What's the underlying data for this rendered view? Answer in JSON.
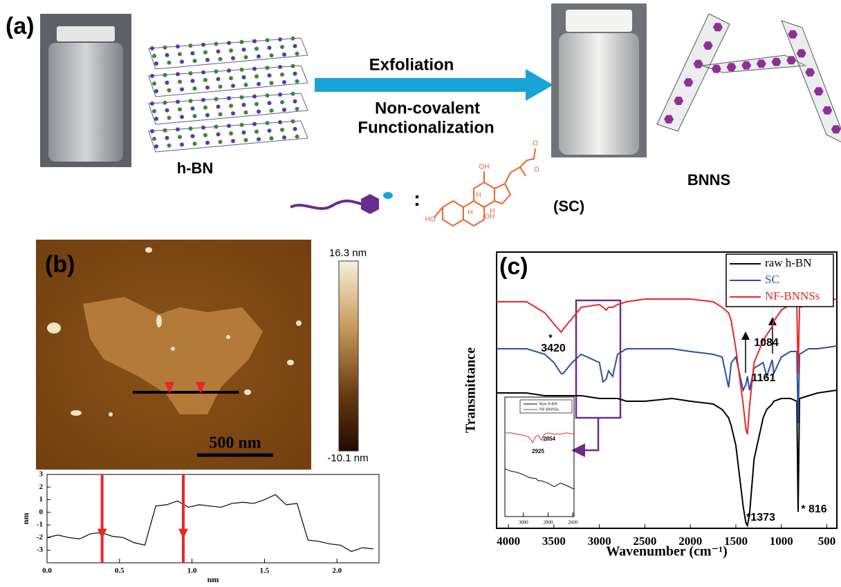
{
  "panel_a": {
    "label": "(a)",
    "hbn": "h-BN",
    "exfoliation": "Exfoliation",
    "functionalization_1": "Non-covalent",
    "functionalization_2": "Functionalization",
    "bnns": "BNNS",
    "colon": ":",
    "sc": "(SC)",
    "molecule_labels": [
      "OH",
      "HO",
      "OH",
      "H",
      "H",
      "H",
      "O",
      "O"
    ]
  },
  "panel_b": {
    "label": "(b)",
    "scale_bar": "500 nm",
    "colorbar_max": "16.3 nm",
    "colorbar_min": "-10.1 nm"
  },
  "panel_c": {
    "label": "(c)"
  },
  "chart_data": [
    {
      "type": "line",
      "xlabel": "nm",
      "ylabel": "nm",
      "x": [
        0,
        0.075,
        0.15,
        0.225,
        0.3,
        0.375,
        0.45,
        0.525,
        0.6,
        0.675,
        0.75,
        0.825,
        0.9,
        0.975,
        1.05,
        1.125,
        1.2,
        1.275,
        1.35,
        1.425,
        1.5,
        1.575,
        1.65,
        1.725,
        1.8,
        1.875,
        1.95,
        2.025,
        2.1,
        2.175,
        2.25
      ],
      "series": [
        {
          "color": "#000000",
          "values": [
            -2.0,
            -1.8,
            -2.0,
            -2.1,
            -1.7,
            -1.6,
            -1.9,
            -2.0,
            -2.4,
            -2.6,
            0.5,
            0.6,
            0.9,
            0.4,
            0.6,
            0.5,
            0.4,
            0.7,
            0.8,
            0.7,
            1.0,
            1.4,
            0.6,
            0.7,
            -2.2,
            -2.3,
            -2.5,
            -2.6,
            -3.1,
            -2.8,
            -2.9
          ]
        }
      ],
      "markers_x": [
        0.38,
        0.94
      ],
      "marker_color": "#e8262a",
      "xlim": [
        0,
        2.29
      ],
      "ylim": [
        -4,
        3
      ],
      "xticks": [
        {
          "value": 0,
          "label": "0.0"
        },
        0.5,
        {
          "value": 1,
          "label": "1.0"
        },
        1.5,
        {
          "value": 2,
          "label": "2.0"
        }
      ],
      "yticks": [
        3,
        2,
        1,
        0,
        -1,
        -2,
        -3
      ]
    },
    {
      "type": "line",
      "xlabel": "Wavenumber (cm⁻¹)",
      "ylabel": "Transmittance",
      "x": [
        4130,
        3800,
        3600,
        3500,
        3420,
        3400,
        3300,
        3200,
        3000,
        2960,
        2925,
        2900,
        2854,
        2800,
        2700,
        2500,
        2200,
        2000,
        1750,
        1650,
        1580,
        1550,
        1500,
        1420,
        1390,
        1373,
        1350,
        1300,
        1200,
        1161,
        1100,
        1084,
        1000,
        900,
        830,
        816,
        800,
        700,
        600,
        390
      ],
      "series": [
        {
          "name": "raw h-BN",
          "color": "#000000",
          "values": [
            4.9,
            4.9,
            4.8,
            4.8,
            4.8,
            4.8,
            4.8,
            4.8,
            4.7,
            4.7,
            4.7,
            4.7,
            4.7,
            4.7,
            4.6,
            4.6,
            4.7,
            4.6,
            4.5,
            4.3,
            4.0,
            3.7,
            3.0,
            0.8,
            0.2,
            0.1,
            0.5,
            2.5,
            4.0,
            4.3,
            4.5,
            4.6,
            4.7,
            4.7,
            4.6,
            0.6,
            4.7,
            4.8,
            4.9,
            5.0
          ]
        },
        {
          "name": "SC",
          "color": "#2a4fa0",
          "values": [
            6.5,
            6.5,
            6.3,
            6.0,
            5.6,
            5.6,
            6.0,
            6.3,
            6.0,
            5.3,
            5.4,
            5.7,
            5.5,
            6.3,
            6.5,
            6.5,
            6.5,
            6.4,
            6.3,
            6.2,
            5.1,
            6.0,
            6.2,
            5.0,
            5.2,
            5.5,
            5.0,
            5.8,
            6.0,
            5.5,
            6.1,
            5.6,
            6.2,
            6.4,
            6.4,
            3.8,
            6.3,
            6.5,
            6.5,
            6.6
          ]
        },
        {
          "name": "NF-BNNSs",
          "color": "#e8262a",
          "values": [
            8.2,
            8.2,
            7.8,
            7.4,
            7.1,
            7.2,
            7.6,
            8.0,
            8.1,
            8.0,
            7.9,
            8.0,
            8.0,
            8.1,
            8.2,
            8.3,
            8.3,
            8.3,
            8.2,
            8.0,
            7.8,
            7.5,
            6.5,
            4.5,
            3.6,
            3.4,
            4.4,
            6.0,
            6.8,
            7.0,
            7.3,
            7.5,
            7.9,
            8.1,
            8.1,
            5.6,
            8.0,
            8.1,
            8.2,
            8.3
          ]
        }
      ],
      "annotations": [
        "*",
        "3420",
        "1084",
        "1161",
        "*1373",
        "* 816"
      ],
      "xlim": [
        4130,
        390
      ],
      "ylim": [
        0,
        10
      ],
      "xticks": [
        4000,
        3500,
        3000,
        2500,
        2000,
        1500,
        1000,
        500
      ],
      "legend": "upper right"
    },
    {
      "type": "line",
      "x": [
        3150,
        3100,
        3050,
        3000,
        2960,
        2925,
        2900,
        2880,
        2854,
        2830,
        2800,
        2750,
        2700,
        2650,
        2590
      ],
      "series": [
        {
          "name": "Raw h-BN",
          "color": "#000000",
          "values": [
            4.0,
            3.8,
            3.7,
            3.5,
            3.3,
            3.2,
            3.2,
            3.0,
            3.0,
            2.9,
            2.8,
            2.5,
            2.8,
            2.6,
            2.3
          ]
        },
        {
          "name": "NF-BNNSs",
          "color": "#e8262a",
          "values": [
            7.0,
            7.0,
            6.9,
            6.8,
            6.7,
            6.2,
            6.7,
            6.8,
            6.4,
            6.9,
            7.0,
            6.9,
            6.9,
            7.0,
            6.9
          ]
        }
      ],
      "annotations": [
        "2925",
        "2854"
      ],
      "xlim": [
        3150,
        2590
      ],
      "ylim": [
        0,
        10
      ],
      "xticks": [
        3000,
        2800,
        2600
      ],
      "legend": "upper right"
    }
  ]
}
